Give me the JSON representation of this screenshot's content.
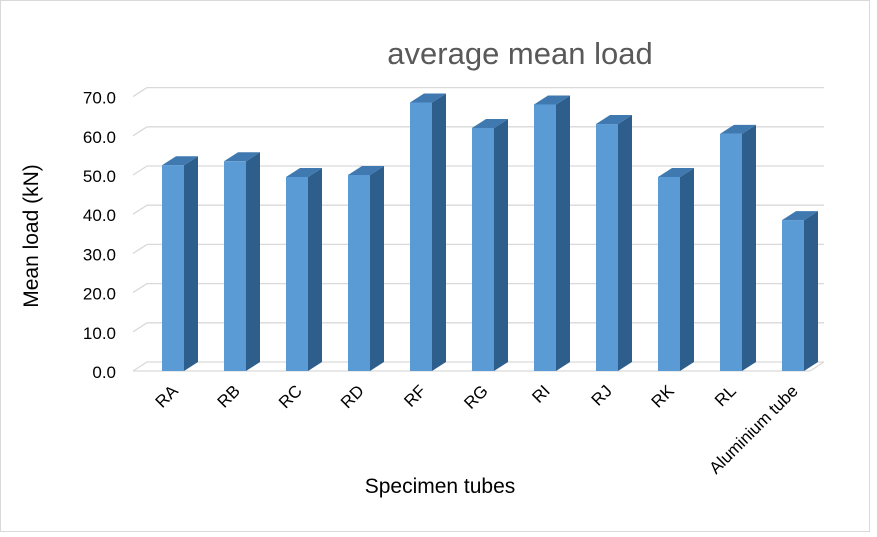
{
  "chart_data": {
    "type": "bar",
    "title": "average mean load",
    "xlabel": "Specimen tubes",
    "ylabel": "Mean load (kN)",
    "categories": [
      "RA",
      "RB",
      "RC",
      "RD",
      "RF",
      "RG",
      "RI",
      "RJ",
      "RK",
      "RL",
      "Aluminium tube"
    ],
    "values": [
      52.5,
      53.5,
      49.5,
      50.0,
      68.5,
      62.0,
      68.0,
      63.0,
      49.5,
      60.5,
      38.5
    ],
    "yticks": [
      "0.0",
      "10.0",
      "20.0",
      "30.0",
      "40.0",
      "50.0",
      "60.0",
      "70.0"
    ],
    "ylim": [
      0,
      70
    ],
    "style": "3d-clustered-column",
    "grid": true,
    "legend": "none",
    "colors": {
      "bar_front": "#5b9bd5",
      "bar_side": "#2e5f8c",
      "bar_top": "#3f79b0",
      "grid": "#d9d9d9",
      "title": "#595959",
      "tick_text": "#000000"
    }
  }
}
